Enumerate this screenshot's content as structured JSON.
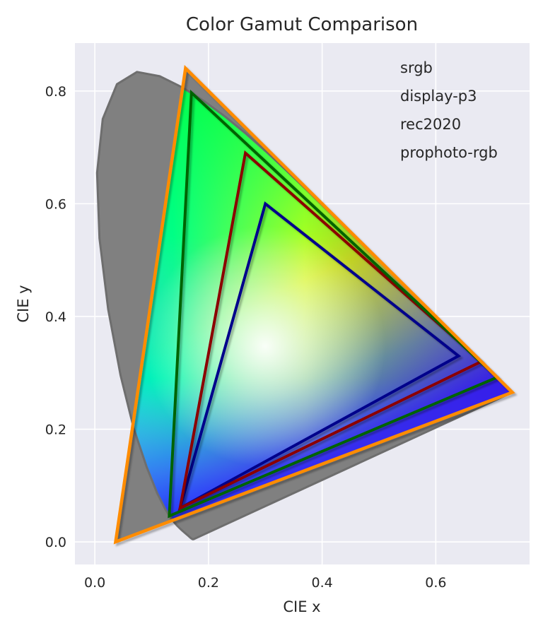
{
  "chart_data": {
    "type": "scatter",
    "title": "Color Gamut Comparison",
    "xlabel": "CIE x",
    "ylabel": "CIE y",
    "xlim": [
      -0.035,
      0.765
    ],
    "ylim": [
      -0.04,
      0.885
    ],
    "xticks": [
      0.0,
      0.2,
      0.4,
      0.6
    ],
    "xtick_labels": [
      "0.0",
      "0.2",
      "0.4",
      "0.6"
    ],
    "yticks": [
      0.0,
      0.2,
      0.4,
      0.6,
      0.8
    ],
    "ytick_labels": [
      "0.0",
      "0.2",
      "0.4",
      "0.6",
      "0.8"
    ],
    "grid": true,
    "legend_position": "top-right",
    "background_color": "#eaeaf2",
    "spectral_locus": [
      [
        0.1741,
        0.005
      ],
      [
        0.174,
        0.005
      ],
      [
        0.1738,
        0.0049
      ],
      [
        0.1736,
        0.0049
      ],
      [
        0.1733,
        0.0048
      ],
      [
        0.173,
        0.0048
      ],
      [
        0.1726,
        0.0048
      ],
      [
        0.1721,
        0.0048
      ],
      [
        0.1714,
        0.0051
      ],
      [
        0.1703,
        0.0058
      ],
      [
        0.1689,
        0.0069
      ],
      [
        0.1669,
        0.0086
      ],
      [
        0.1644,
        0.0109
      ],
      [
        0.1611,
        0.0138
      ],
      [
        0.1566,
        0.0177
      ],
      [
        0.151,
        0.0227
      ],
      [
        0.144,
        0.0297
      ],
      [
        0.1355,
        0.0399
      ],
      [
        0.1241,
        0.0578
      ],
      [
        0.1096,
        0.0868
      ],
      [
        0.0913,
        0.1327
      ],
      [
        0.0687,
        0.2007
      ],
      [
        0.0454,
        0.295
      ],
      [
        0.0235,
        0.4127
      ],
      [
        0.0082,
        0.5384
      ],
      [
        0.0039,
        0.6548
      ],
      [
        0.0139,
        0.7502
      ],
      [
        0.0389,
        0.812
      ],
      [
        0.0743,
        0.8338
      ],
      [
        0.1142,
        0.8262
      ],
      [
        0.1547,
        0.8059
      ],
      [
        0.1929,
        0.7816
      ],
      [
        0.2296,
        0.7543
      ],
      [
        0.2658,
        0.7243
      ],
      [
        0.3016,
        0.6923
      ],
      [
        0.3373,
        0.6589
      ],
      [
        0.3731,
        0.6245
      ],
      [
        0.4087,
        0.5896
      ],
      [
        0.4441,
        0.5547
      ],
      [
        0.4788,
        0.5202
      ],
      [
        0.5125,
        0.4866
      ],
      [
        0.5448,
        0.4544
      ],
      [
        0.5752,
        0.4242
      ],
      [
        0.6029,
        0.3965
      ],
      [
        0.627,
        0.3725
      ],
      [
        0.6482,
        0.3514
      ],
      [
        0.6658,
        0.334
      ],
      [
        0.6801,
        0.3197
      ],
      [
        0.6915,
        0.3083
      ],
      [
        0.7006,
        0.2993
      ],
      [
        0.7079,
        0.292
      ],
      [
        0.714,
        0.2859
      ],
      [
        0.719,
        0.2809
      ],
      [
        0.723,
        0.277
      ],
      [
        0.726,
        0.274
      ],
      [
        0.7283,
        0.2717
      ],
      [
        0.73,
        0.27
      ],
      [
        0.7311,
        0.2689
      ],
      [
        0.732,
        0.268
      ],
      [
        0.7327,
        0.2673
      ],
      [
        0.7334,
        0.2666
      ],
      [
        0.734,
        0.266
      ],
      [
        0.7344,
        0.2656
      ],
      [
        0.7346,
        0.2654
      ],
      [
        0.7347,
        0.2653
      ]
    ],
    "series": [
      {
        "name": "srgb",
        "color": "#00008b",
        "points": [
          [
            0.64,
            0.33
          ],
          [
            0.3,
            0.6
          ],
          [
            0.15,
            0.06
          ]
        ]
      },
      {
        "name": "display-p3",
        "color": "#8b0000",
        "points": [
          [
            0.68,
            0.32
          ],
          [
            0.265,
            0.69
          ],
          [
            0.15,
            0.06
          ]
        ]
      },
      {
        "name": "rec2020",
        "color": "#006400",
        "points": [
          [
            0.708,
            0.292
          ],
          [
            0.17,
            0.797
          ],
          [
            0.131,
            0.046
          ]
        ]
      },
      {
        "name": "prophoto-rgb",
        "color": "#ff8c00",
        "points": [
          [
            0.7347,
            0.2653
          ],
          [
            0.1596,
            0.8404
          ],
          [
            0.0366,
            0.0001
          ]
        ]
      }
    ]
  }
}
